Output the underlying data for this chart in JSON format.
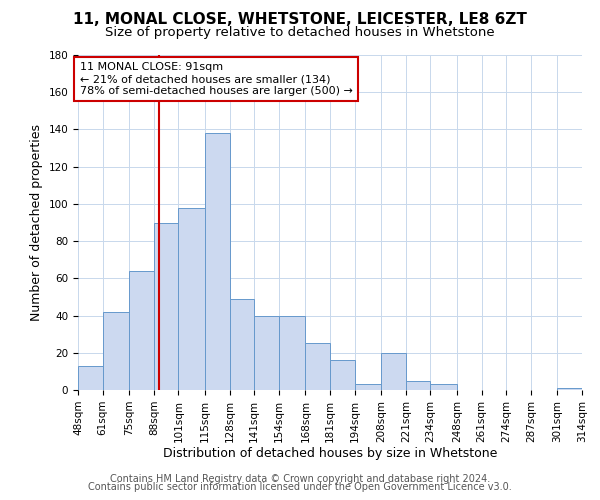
{
  "title": "11, MONAL CLOSE, WHETSTONE, LEICESTER, LE8 6ZT",
  "subtitle": "Size of property relative to detached houses in Whetstone",
  "xlabel": "Distribution of detached houses by size in Whetstone",
  "ylabel": "Number of detached properties",
  "bar_color": "#ccd9f0",
  "bar_edge_color": "#6699cc",
  "background_color": "#ffffff",
  "grid_color": "#c8d8ec",
  "bin_edges": [
    48,
    61,
    75,
    88,
    101,
    115,
    128,
    141,
    154,
    168,
    181,
    194,
    208,
    221,
    234,
    248,
    261,
    274,
    287,
    301,
    314
  ],
  "bin_labels": [
    "48sqm",
    "61sqm",
    "75sqm",
    "88sqm",
    "101sqm",
    "115sqm",
    "128sqm",
    "141sqm",
    "154sqm",
    "168sqm",
    "181sqm",
    "194sqm",
    "208sqm",
    "221sqm",
    "234sqm",
    "248sqm",
    "261sqm",
    "274sqm",
    "287sqm",
    "301sqm",
    "314sqm"
  ],
  "counts": [
    13,
    42,
    64,
    90,
    98,
    138,
    49,
    40,
    40,
    25,
    16,
    3,
    20,
    5,
    3,
    0,
    0,
    0,
    0,
    1
  ],
  "vline_x": 91,
  "vline_color": "#cc0000",
  "annotation_line1": "11 MONAL CLOSE: 91sqm",
  "annotation_line2": "← 21% of detached houses are smaller (134)",
  "annotation_line3": "78% of semi-detached houses are larger (500) →",
  "annotation_box_color": "#ffffff",
  "annotation_box_edge_color": "#cc0000",
  "ylim": [
    0,
    180
  ],
  "yticks": [
    0,
    20,
    40,
    60,
    80,
    100,
    120,
    140,
    160,
    180
  ],
  "footer_line1": "Contains HM Land Registry data © Crown copyright and database right 2024.",
  "footer_line2": "Contains public sector information licensed under the Open Government Licence v3.0.",
  "title_fontsize": 11,
  "subtitle_fontsize": 9.5,
  "axis_label_fontsize": 9,
  "tick_fontsize": 7.5,
  "annotation_fontsize": 8,
  "footer_fontsize": 7
}
